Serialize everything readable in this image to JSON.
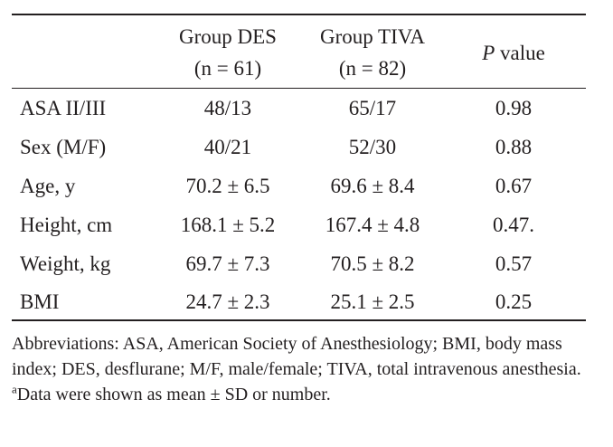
{
  "table": {
    "headers": {
      "group_des": {
        "name": "Group DES",
        "n": "(n = 61)"
      },
      "group_tiva": {
        "name": "Group TIVA",
        "n": "(n = 82)"
      },
      "p_value": {
        "p": "P",
        "label": "value"
      }
    },
    "rows": [
      {
        "label": "ASA II/III",
        "des": "48/13",
        "tiva": "65/17",
        "p": "0.98"
      },
      {
        "label": "Sex (M/F)",
        "des": "40/21",
        "tiva": "52/30",
        "p": "0.88"
      },
      {
        "label": "Age, y",
        "des": "70.2 ± 6.5",
        "tiva": "69.6 ± 8.4",
        "p": "0.67"
      },
      {
        "label": "Height, cm",
        "des": "168.1 ± 5.2",
        "tiva": "167.4 ± 4.8",
        "p": "0.47."
      },
      {
        "label": "Weight, kg",
        "des": "69.7 ± 7.3",
        "tiva": "70.5 ± 8.2",
        "p": "0.57"
      },
      {
        "label": "BMI",
        "des": "24.7 ± 2.3",
        "tiva": "25.1 ± 2.5",
        "p": "0.25"
      }
    ]
  },
  "footnote": {
    "abbreviations": "Abbreviations: ASA, American Society of Anesthesiology; BMI, body mass index; DES, desflurane; M/F, male/female; TIVA, total intravenous anesthesia.",
    "note_mark": "a",
    "note": "Data were shown as mean ± SD or number."
  }
}
